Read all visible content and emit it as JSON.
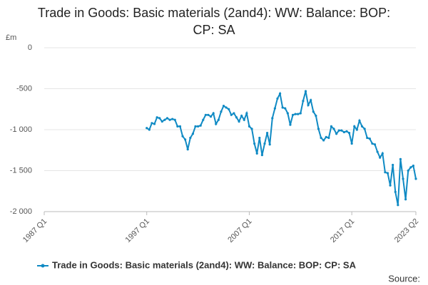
{
  "chart_data": {
    "type": "line",
    "title": "Trade in Goods: Basic materials (2and4): WW: Balance: BOP: CP: SA",
    "y_label": "£m",
    "source": "Source:",
    "categories": [
      "1987 Q1",
      null,
      null,
      null,
      null,
      null,
      null,
      null,
      null,
      null,
      null,
      null,
      null,
      null,
      null,
      null,
      null,
      null,
      null,
      null,
      null,
      null,
      null,
      null,
      null,
      null,
      null,
      null,
      null,
      null,
      null,
      null,
      null,
      null,
      null,
      null,
      null,
      null,
      null,
      null,
      "1997 Q1",
      null,
      null,
      null,
      null,
      null,
      null,
      null,
      null,
      null,
      null,
      null,
      null,
      null,
      null,
      null,
      null,
      null,
      null,
      null,
      null,
      null,
      null,
      null,
      null,
      null,
      null,
      null,
      null,
      null,
      null,
      null,
      null,
      null,
      null,
      null,
      null,
      null,
      null,
      null,
      "2007 Q1",
      null,
      null,
      null,
      null,
      null,
      null,
      null,
      null,
      null,
      null,
      null,
      null,
      null,
      null,
      null,
      null,
      null,
      null,
      null,
      null,
      null,
      null,
      null,
      null,
      null,
      null,
      null,
      null,
      null,
      null,
      null,
      null,
      null,
      null,
      null,
      null,
      null,
      null,
      null,
      "2017 Q1",
      null,
      null,
      null,
      null,
      null,
      null,
      null,
      null,
      null,
      null,
      null,
      null,
      null,
      null,
      null,
      null,
      null,
      null,
      null,
      null,
      null,
      null,
      null,
      null,
      "2023 Q2"
    ],
    "series": [
      {
        "name": "Trade in Goods: Basic materials (2and4): WW: Balance: BOP: CP: SA",
        "color": "#0f8ac4",
        "values": [
          null,
          null,
          null,
          null,
          null,
          null,
          null,
          null,
          null,
          null,
          null,
          null,
          null,
          null,
          null,
          null,
          null,
          null,
          null,
          null,
          null,
          null,
          null,
          null,
          null,
          null,
          null,
          null,
          null,
          null,
          null,
          null,
          null,
          null,
          null,
          null,
          null,
          null,
          null,
          null,
          -980,
          -1000,
          -920,
          -930,
          -850,
          -860,
          -900,
          -880,
          -860,
          -880,
          -870,
          -880,
          -960,
          -960,
          -1080,
          -1120,
          -1240,
          -1100,
          -1050,
          -960,
          -960,
          -950,
          -880,
          -820,
          -820,
          -840,
          -800,
          -930,
          -880,
          -780,
          -710,
          -730,
          -750,
          -820,
          -800,
          -850,
          -900,
          -830,
          -880,
          -800,
          -960,
          -990,
          -1170,
          -1290,
          -1100,
          -1310,
          -1170,
          -1040,
          -1180,
          -860,
          -740,
          -620,
          -560,
          -730,
          -740,
          -800,
          -940,
          -820,
          -810,
          -810,
          -800,
          -650,
          -530,
          -700,
          -640,
          -780,
          -830,
          -990,
          -1100,
          -1130,
          -1090,
          -1100,
          -960,
          -990,
          -1050,
          -1010,
          -1010,
          -1030,
          -1020,
          -1040,
          -1170,
          -960,
          -1000,
          -890,
          -960,
          -990,
          -1100,
          -1110,
          -1170,
          -1180,
          -1270,
          -1340,
          -1290,
          -1520,
          -1530,
          -1680,
          -1430,
          -1760,
          -1920,
          -1360,
          -1600,
          -1850,
          -1500,
          -1460,
          -1440,
          -1600
        ]
      }
    ],
    "ylim": [
      -2000,
      0
    ],
    "yticks": [
      {
        "value": -2000,
        "label": "-2 000"
      },
      {
        "value": -1500,
        "label": "-1 500"
      },
      {
        "value": -1000,
        "label": "-1 000"
      },
      -500,
      0
    ],
    "grid": true,
    "legend": "bottom"
  }
}
